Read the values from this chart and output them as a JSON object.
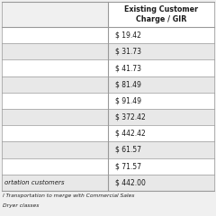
{
  "header_col2": "Existing Customer\nCharge / GIR",
  "rows": [
    [
      "",
      "$ 19.42"
    ],
    [
      "",
      "$ 31.73"
    ],
    [
      "",
      "$ 41.73"
    ],
    [
      "",
      "$ 81.49"
    ],
    [
      "",
      "$ 91.49"
    ],
    [
      "",
      "$ 372.42"
    ],
    [
      "",
      "$ 442.42"
    ],
    [
      "",
      "$ 61.57"
    ],
    [
      "",
      "$ 71.57"
    ],
    [
      "ortation customers",
      "$ 442.00"
    ]
  ],
  "footnote_lines": [
    "l Transportation to merge with Commercial Sales",
    "Dryer classes"
  ],
  "col_split": 0.5,
  "bg_color": "#f0f0f0",
  "cell_bg_white": "#ffffff",
  "cell_bg_gray": "#e8e8e8",
  "border_color": "#999999",
  "text_color": "#1a1a1a",
  "footnote_color": "#222222",
  "header_fontsize": 5.8,
  "cell_fontsize": 5.5,
  "footnote_fontsize": 4.3
}
